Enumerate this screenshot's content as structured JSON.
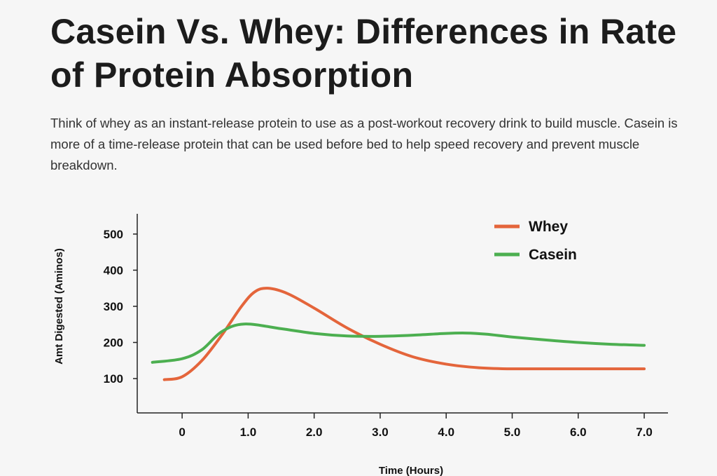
{
  "header": {
    "title": "Casein Vs. Whey: Differences in Rate of Protein Absorption",
    "description": "Think of whey as an instant-release protein to use as a post-workout recovery drink to build muscle. Casein is more of a time-release protein that can be used before bed to help speed recovery and prevent muscle breakdown."
  },
  "chart_data": {
    "type": "line",
    "title": "",
    "xlabel": "Time (Hours)",
    "ylabel": "Amt Digested (Aminos)",
    "xlim": [
      -0.68,
      7.36
    ],
    "ylim": [
      5,
      556
    ],
    "xticks": [
      0,
      1,
      2,
      3,
      4,
      5,
      6,
      7
    ],
    "xtick_labels": [
      "0",
      "1.0",
      "2.0",
      "3.0",
      "4.0",
      "5.0",
      "6.0",
      "7.0"
    ],
    "yticks": [
      100,
      200,
      300,
      400,
      500
    ],
    "ytick_labels": [
      "100",
      "200",
      "300",
      "400",
      "500"
    ],
    "grid": false,
    "legend_position": "top-right",
    "series": [
      {
        "name": "Whey",
        "color": "#e4653b",
        "x": [
          -0.27,
          0,
          0.3,
          0.6,
          0.9,
          1.1,
          1.3,
          1.6,
          2.0,
          2.5,
          3.0,
          3.5,
          4.0,
          4.5,
          5.0,
          6.0,
          7.0
        ],
        "y": [
          97,
          105,
          150,
          220,
          300,
          340,
          350,
          335,
          295,
          240,
          195,
          160,
          140,
          130,
          127,
          127,
          127
        ]
      },
      {
        "name": "Casein",
        "color": "#4caf50",
        "x": [
          -0.45,
          0,
          0.3,
          0.6,
          0.94,
          1.5,
          2.0,
          2.5,
          3.0,
          3.5,
          4.0,
          4.3,
          4.6,
          5.0,
          5.5,
          6.0,
          6.5,
          7.0
        ],
        "y": [
          145,
          155,
          180,
          230,
          251,
          238,
          225,
          218,
          217,
          220,
          225,
          226,
          223,
          215,
          207,
          200,
          195,
          192
        ]
      }
    ]
  }
}
